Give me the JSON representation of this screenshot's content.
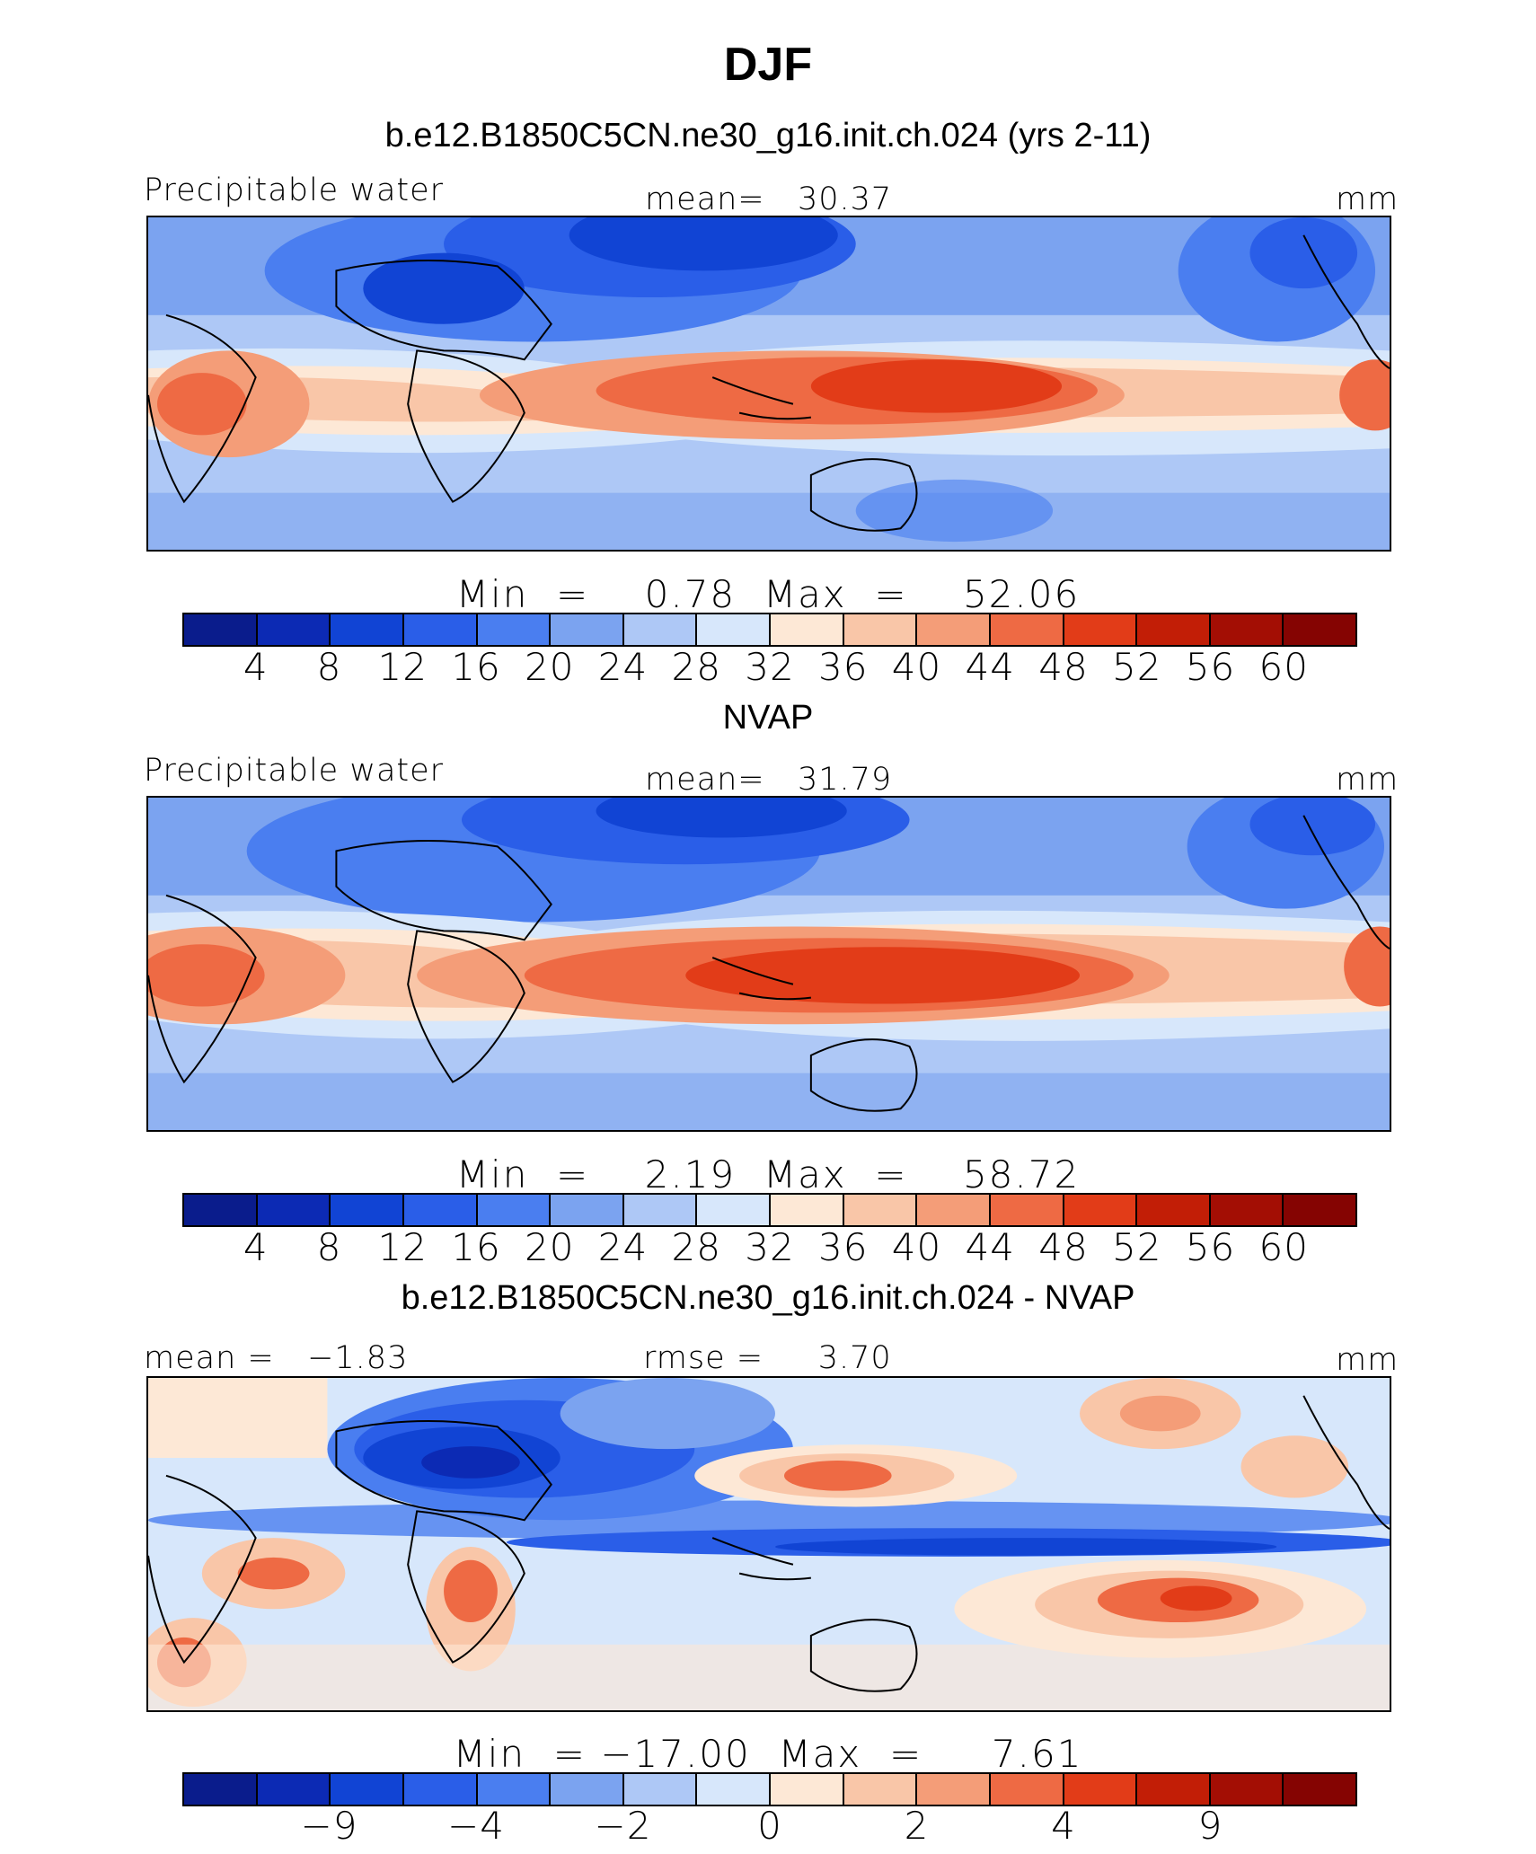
{
  "figure": {
    "title": "DJF"
  },
  "colors": {
    "palette": [
      "#0a1c8c",
      "#0c2ab4",
      "#1144d4",
      "#2a5ee8",
      "#4a7ef0",
      "#7ba3f0",
      "#aec8f6",
      "#d7e7fb",
      "#fde8d6",
      "#f9c6a8",
      "#f49d78",
      "#ee6a44",
      "#e23c18",
      "#c21e06",
      "#a30e04",
      "#850402"
    ]
  },
  "panels": [
    {
      "title": "b.e12.B1850C5CN.ne30_g16.init.ch.024 (yrs 2-11)",
      "left_label": "Precipitable water",
      "center_label": "mean=   30.37",
      "right_label": "mm",
      "map_variant": "model",
      "stats": "Min  =    0.78  Max  =    52.06",
      "ticks": [
        "4",
        "8",
        "12",
        "16",
        "20",
        "24",
        "28",
        "32",
        "36",
        "40",
        "44",
        "48",
        "52",
        "56",
        "60"
      ]
    },
    {
      "title": "NVAP",
      "left_label": "Precipitable water",
      "center_label": "mean=   31.79",
      "right_label": "mm",
      "map_variant": "obs",
      "stats": "Min  =    2.19  Max  =    58.72",
      "ticks": [
        "4",
        "8",
        "12",
        "16",
        "20",
        "24",
        "28",
        "32",
        "36",
        "40",
        "44",
        "48",
        "52",
        "56",
        "60"
      ]
    },
    {
      "title": "b.e12.B1850C5CN.ne30_g16.init.ch.024 - NVAP",
      "left_label": "mean =   −1.83",
      "center_label": "rmse =     3.70",
      "right_label": "mm",
      "map_variant": "diff",
      "stats": "Min  = −17.00  Max  =     7.61",
      "ticks": [
        "−9",
        "−4",
        "−2",
        "0",
        "2",
        "4",
        "9"
      ]
    }
  ]
}
